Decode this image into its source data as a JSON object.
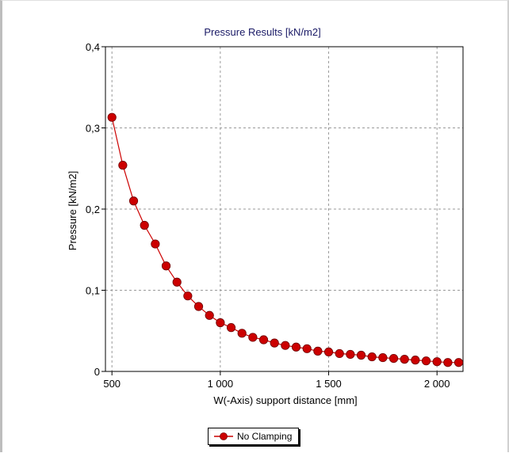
{
  "chart_data": {
    "type": "line",
    "title": "Pressure Results [kN/m2]",
    "xlabel": "W(-Axis) support distance [mm]",
    "ylabel": "Pressure [kN/m2]",
    "xlim": [
      470,
      2120
    ],
    "ylim": [
      0,
      0.4
    ],
    "x_ticks": [
      500,
      1000,
      1500,
      2000
    ],
    "x_tick_labels": [
      "500",
      "1 000",
      "1 500",
      "2 000"
    ],
    "y_ticks": [
      0,
      0.1,
      0.2,
      0.3,
      0.4
    ],
    "y_tick_labels": [
      "0",
      "0,1",
      "0,2",
      "0,3",
      "0,4"
    ],
    "grid": true,
    "legend_position": "bottom-center",
    "series": [
      {
        "name": "No Clamping",
        "color": "#cc0000",
        "x": [
          500,
          550,
          600,
          650,
          700,
          750,
          800,
          850,
          900,
          950,
          1000,
          1050,
          1100,
          1150,
          1200,
          1250,
          1300,
          1350,
          1400,
          1450,
          1500,
          1550,
          1600,
          1650,
          1700,
          1750,
          1800,
          1850,
          1900,
          1950,
          2000,
          2050,
          2100
        ],
        "y": [
          0.313,
          0.254,
          0.21,
          0.18,
          0.157,
          0.13,
          0.11,
          0.093,
          0.08,
          0.069,
          0.06,
          0.054,
          0.047,
          0.042,
          0.039,
          0.035,
          0.032,
          0.03,
          0.028,
          0.025,
          0.024,
          0.022,
          0.021,
          0.02,
          0.018,
          0.017,
          0.016,
          0.015,
          0.014,
          0.013,
          0.012,
          0.011,
          0.011
        ]
      }
    ]
  }
}
